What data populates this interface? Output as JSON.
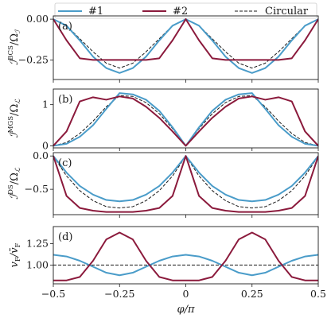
{
  "legend": {
    "placement": "top",
    "entries": [
      {
        "label": "#1",
        "color": "#4a9cc9",
        "style": "solid"
      },
      {
        "label": "#2",
        "color": "#8b1a3c",
        "style": "solid"
      },
      {
        "label": "Circular",
        "color": "#1a1a1a",
        "style": "dashed"
      }
    ]
  },
  "x_axis": {
    "label": "φ/π",
    "range": [
      -0.5,
      0.5
    ],
    "ticks": [
      -0.5,
      -0.25,
      0,
      0.25,
      0.5
    ],
    "tick_labels": [
      "−0.5",
      "−0.25",
      "0",
      "0.25",
      "0.5"
    ]
  },
  "chart_data": [
    {
      "type": "line",
      "panel": "(a)",
      "ylabel": "I^BCS/Ω_A",
      "ylim": [
        -0.37,
        0.02
      ],
      "yticks": [
        0.0,
        -0.25
      ],
      "ytick_labels": [
        "0.00",
        "−0.25"
      ],
      "x": [
        -0.5,
        -0.45,
        -0.4,
        -0.35,
        -0.3,
        -0.25,
        -0.2,
        -0.15,
        -0.1,
        -0.05,
        0,
        0.05,
        0.1,
        0.15,
        0.2,
        0.25,
        0.3,
        0.35,
        0.4,
        0.45,
        0.5
      ],
      "series": [
        {
          "name": "#1",
          "values": [
            0.0,
            -0.04,
            -0.13,
            -0.23,
            -0.3,
            -0.33,
            -0.3,
            -0.23,
            -0.13,
            -0.04,
            0.0,
            -0.04,
            -0.13,
            -0.23,
            -0.3,
            -0.33,
            -0.3,
            -0.23,
            -0.13,
            -0.04,
            0.0
          ]
        },
        {
          "name": "#2",
          "values": [
            0.0,
            -0.13,
            -0.24,
            -0.25,
            -0.25,
            -0.25,
            -0.25,
            -0.25,
            -0.24,
            -0.13,
            0.0,
            -0.13,
            -0.24,
            -0.25,
            -0.25,
            -0.25,
            -0.25,
            -0.25,
            -0.24,
            -0.13,
            0.0
          ]
        },
        {
          "name": "Circular",
          "values": [
            0.0,
            -0.04,
            -0.12,
            -0.2,
            -0.27,
            -0.3,
            -0.27,
            -0.2,
            -0.12,
            -0.04,
            0.0,
            -0.04,
            -0.12,
            -0.2,
            -0.27,
            -0.3,
            -0.27,
            -0.2,
            -0.12,
            -0.04,
            0.0
          ]
        }
      ]
    },
    {
      "type": "line",
      "panel": "(b)",
      "ylabel": "I^MGS/Ω_L",
      "ylim": [
        -0.05,
        1.38
      ],
      "yticks": [
        0,
        1
      ],
      "ytick_labels": [
        "0",
        "1"
      ],
      "x": [
        -0.5,
        -0.45,
        -0.4,
        -0.35,
        -0.3,
        -0.25,
        -0.2,
        -0.15,
        -0.1,
        -0.05,
        0,
        0.05,
        0.1,
        0.15,
        0.2,
        0.25,
        0.3,
        0.35,
        0.4,
        0.45,
        0.5
      ],
      "series": [
        {
          "name": "#1",
          "values": [
            0.0,
            0.05,
            0.22,
            0.5,
            0.9,
            1.28,
            1.25,
            1.12,
            0.85,
            0.45,
            0.0,
            0.45,
            0.85,
            1.12,
            1.25,
            1.28,
            0.9,
            0.5,
            0.22,
            0.05,
            0.0
          ]
        },
        {
          "name": "#2",
          "values": [
            0.0,
            0.35,
            1.08,
            1.18,
            1.12,
            1.2,
            1.15,
            0.95,
            0.68,
            0.35,
            0.0,
            0.35,
            0.68,
            0.95,
            1.15,
            1.2,
            1.12,
            1.18,
            1.08,
            0.35,
            0.0
          ]
        },
        {
          "name": "Circular",
          "values": [
            0.0,
            0.08,
            0.3,
            0.6,
            0.95,
            1.22,
            1.2,
            1.05,
            0.78,
            0.42,
            0.0,
            0.42,
            0.78,
            1.05,
            1.2,
            1.22,
            0.95,
            0.6,
            0.3,
            0.08,
            0.0
          ]
        }
      ]
    },
    {
      "type": "line",
      "panel": "(c)",
      "ylabel": "I^DS/Ω_L",
      "ylim": [
        -0.88,
        0.05
      ],
      "yticks": [
        0.0,
        -0.5
      ],
      "ytick_labels": [
        "0.0",
        "−0.5"
      ],
      "x": [
        -0.5,
        -0.45,
        -0.4,
        -0.35,
        -0.3,
        -0.25,
        -0.2,
        -0.15,
        -0.1,
        -0.05,
        0,
        0.05,
        0.1,
        0.15,
        0.2,
        0.25,
        0.3,
        0.35,
        0.4,
        0.45,
        0.5
      ],
      "series": [
        {
          "name": "#1",
          "values": [
            0.0,
            -0.25,
            -0.45,
            -0.58,
            -0.66,
            -0.68,
            -0.66,
            -0.58,
            -0.45,
            -0.25,
            0.0,
            -0.25,
            -0.45,
            -0.58,
            -0.66,
            -0.68,
            -0.66,
            -0.58,
            -0.45,
            -0.25,
            0.0
          ]
        },
        {
          "name": "#2",
          "values": [
            0.0,
            -0.6,
            -0.78,
            -0.82,
            -0.84,
            -0.84,
            -0.84,
            -0.82,
            -0.78,
            -0.6,
            0.0,
            -0.6,
            -0.78,
            -0.82,
            -0.84,
            -0.84,
            -0.84,
            -0.82,
            -0.78,
            -0.6,
            0.0
          ]
        },
        {
          "name": "Circular",
          "values": [
            0.0,
            -0.3,
            -0.52,
            -0.67,
            -0.76,
            -0.78,
            -0.76,
            -0.67,
            -0.52,
            -0.3,
            0.0,
            -0.3,
            -0.52,
            -0.67,
            -0.76,
            -0.78,
            -0.76,
            -0.67,
            -0.52,
            -0.3,
            0.0
          ]
        }
      ]
    },
    {
      "type": "line",
      "panel": "(d)",
      "ylabel": "v_F/v̄_F",
      "ylim": [
        0.78,
        1.45
      ],
      "yticks": [
        1.0,
        1.25
      ],
      "ytick_labels": [
        "1.00",
        "1.25"
      ],
      "x": [
        -0.5,
        -0.45,
        -0.4,
        -0.35,
        -0.3,
        -0.25,
        -0.2,
        -0.15,
        -0.1,
        -0.05,
        0,
        0.05,
        0.1,
        0.15,
        0.2,
        0.25,
        0.3,
        0.35,
        0.4,
        0.45,
        0.5
      ],
      "series": [
        {
          "name": "#1",
          "values": [
            1.12,
            1.1,
            1.05,
            0.98,
            0.91,
            0.88,
            0.91,
            0.98,
            1.05,
            1.1,
            1.12,
            1.1,
            1.05,
            0.98,
            0.91,
            0.88,
            0.91,
            0.98,
            1.05,
            1.1,
            1.12
          ]
        },
        {
          "name": "#2",
          "values": [
            0.82,
            0.82,
            0.86,
            1.05,
            1.3,
            1.38,
            1.3,
            1.05,
            0.86,
            0.82,
            0.82,
            0.82,
            0.86,
            1.05,
            1.3,
            1.38,
            1.3,
            1.05,
            0.86,
            0.82,
            0.82
          ]
        },
        {
          "name": "Circular",
          "values": [
            1.0,
            1.0,
            1.0,
            1.0,
            1.0,
            1.0,
            1.0,
            1.0,
            1.0,
            1.0,
            1.0,
            1.0,
            1.0,
            1.0,
            1.0,
            1.0,
            1.0,
            1.0,
            1.0,
            1.0,
            1.0
          ]
        }
      ]
    }
  ]
}
